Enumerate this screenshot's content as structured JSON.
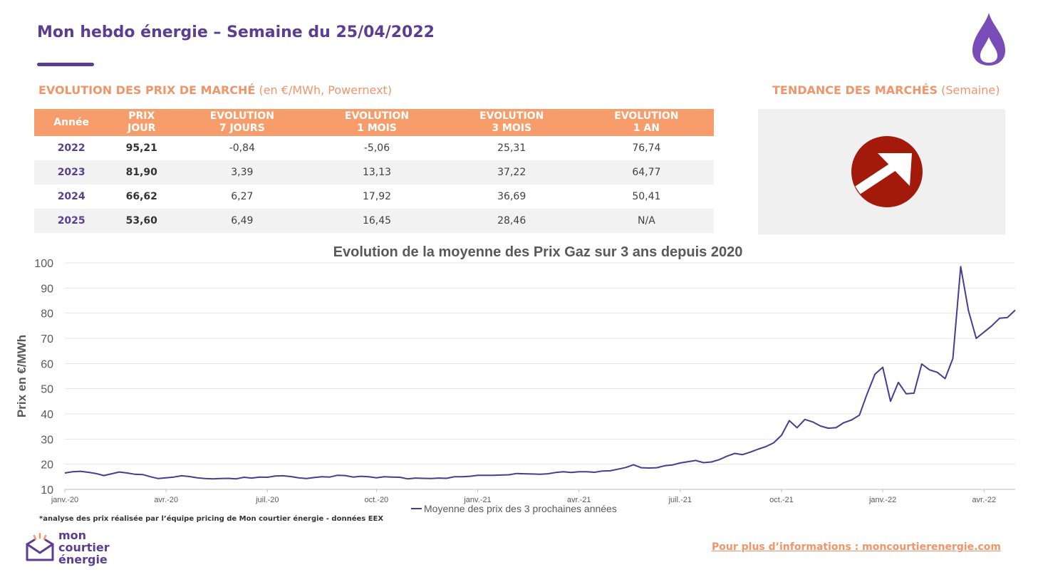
{
  "header": {
    "title": "Mon hebdo énergie – Semaine du 25/04/2022"
  },
  "market": {
    "title": "EVOLUTION DES PRIX DE MARCHÉ",
    "subtitle": "(en €/MWh, Powernext)"
  },
  "trend": {
    "title": "TENDANCE DES MARCHÉS",
    "subtitle": "(Semaine)"
  },
  "table": {
    "columns": [
      [
        "Année"
      ],
      [
        "PRIX",
        "JOUR"
      ],
      [
        "EVOLUTION",
        "7 JOURS"
      ],
      [
        "EVOLUTION",
        "1 MOIS"
      ],
      [
        "EVOLUTION",
        "3 MOIS"
      ],
      [
        "EVOLUTION",
        "1 AN"
      ]
    ],
    "rows": [
      [
        "2022",
        "95,21",
        "-0,84",
        "-5,06",
        "25,31",
        "76,74"
      ],
      [
        "2023",
        "81,90",
        "3,39",
        "13,13",
        "37,22",
        "64,77"
      ],
      [
        "2024",
        "66,62",
        "6,27",
        "17,92",
        "36,69",
        "50,41"
      ],
      [
        "2025",
        "53,60",
        "6,49",
        "16,45",
        "28,46",
        "N/A"
      ]
    ]
  },
  "chart_data": {
    "type": "line",
    "title": "Evolution de la moyenne des Prix Gaz sur 3 ans depuis 2020",
    "y_label": "Prix en €/MWh",
    "ylim": [
      10,
      100
    ],
    "yticks": [
      10,
      20,
      30,
      40,
      50,
      60,
      70,
      80,
      90,
      100
    ],
    "grid": true,
    "categories": [
      "janv.-20",
      null,
      null,
      null,
      null,
      null,
      null,
      null,
      null,
      null,
      null,
      null,
      null,
      "avr.-20",
      null,
      null,
      null,
      null,
      null,
      null,
      null,
      null,
      null,
      null,
      null,
      null,
      "juil.-20",
      null,
      null,
      null,
      null,
      null,
      null,
      null,
      null,
      null,
      null,
      null,
      null,
      null,
      "oct.-20",
      null,
      null,
      null,
      null,
      null,
      null,
      null,
      null,
      null,
      null,
      null,
      null,
      "janv.-21",
      null,
      null,
      null,
      null,
      null,
      null,
      null,
      null,
      null,
      null,
      null,
      null,
      "avr.-21",
      null,
      null,
      null,
      null,
      null,
      null,
      null,
      null,
      null,
      null,
      null,
      null,
      "juil.-21",
      null,
      null,
      null,
      null,
      null,
      null,
      null,
      null,
      null,
      null,
      null,
      null,
      "oct.-21",
      null,
      null,
      null,
      null,
      null,
      null,
      null,
      null,
      null,
      null,
      null,
      null,
      "janv.-22",
      null,
      null,
      null,
      null,
      null,
      null,
      null,
      null,
      null,
      null,
      null,
      null,
      "avr.-22",
      null,
      null,
      null,
      null
    ],
    "series": [
      {
        "name": "Moyenne des prix des 3 prochaines années",
        "color": "#4b3b8f",
        "values": [
          16.5,
          17,
          17.2,
          16.8,
          16.3,
          15.5,
          16.2,
          16.9,
          16.5,
          16,
          15.9,
          15,
          14.3,
          14.6,
          14.9,
          15.4,
          15.1,
          14.6,
          14.3,
          14.2,
          14.3,
          14.4,
          14.2,
          14.8,
          14.5,
          14.9,
          14.8,
          15.3,
          15.4,
          15.1,
          14.6,
          14.3,
          14.7,
          15,
          14.9,
          15.6,
          15.5,
          14.9,
          15.2,
          15,
          14.6,
          15,
          14.9,
          14.8,
          14.2,
          14.5,
          14.4,
          14.3,
          14.5,
          14.4,
          15,
          15,
          15.2,
          15.6,
          15.6,
          15.6,
          15.7,
          15.8,
          16.3,
          16.2,
          16.1,
          16,
          16.2,
          16.7,
          17,
          16.7,
          17,
          17,
          16.8,
          17.3,
          17.4,
          18,
          18.7,
          19.8,
          18.6,
          18.5,
          18.6,
          19.4,
          19.7,
          20.5,
          21,
          21.5,
          20.6,
          20.9,
          21.8,
          23.2,
          24.3,
          23.8,
          24.8,
          26,
          27,
          28.5,
          31.5,
          37.3,
          34.5,
          37.8,
          36.8,
          35.2,
          34.3,
          34.5,
          36.5,
          37.6,
          39.5,
          48,
          55.8,
          58.5,
          45,
          52.5,
          48,
          48.2,
          59.8,
          57.5,
          56.5,
          54,
          62,
          98.5,
          81,
          70,
          72.5,
          75,
          78,
          78.3,
          81.2
        ]
      }
    ]
  },
  "footnote": "*analyse des prix réalisée par l’équipe pricing de Mon courtier énergie -  données EEX",
  "logo": [
    "mon",
    "courtier",
    "énergie"
  ],
  "link": "Pour plus d’informations : moncourtierenergie.com"
}
